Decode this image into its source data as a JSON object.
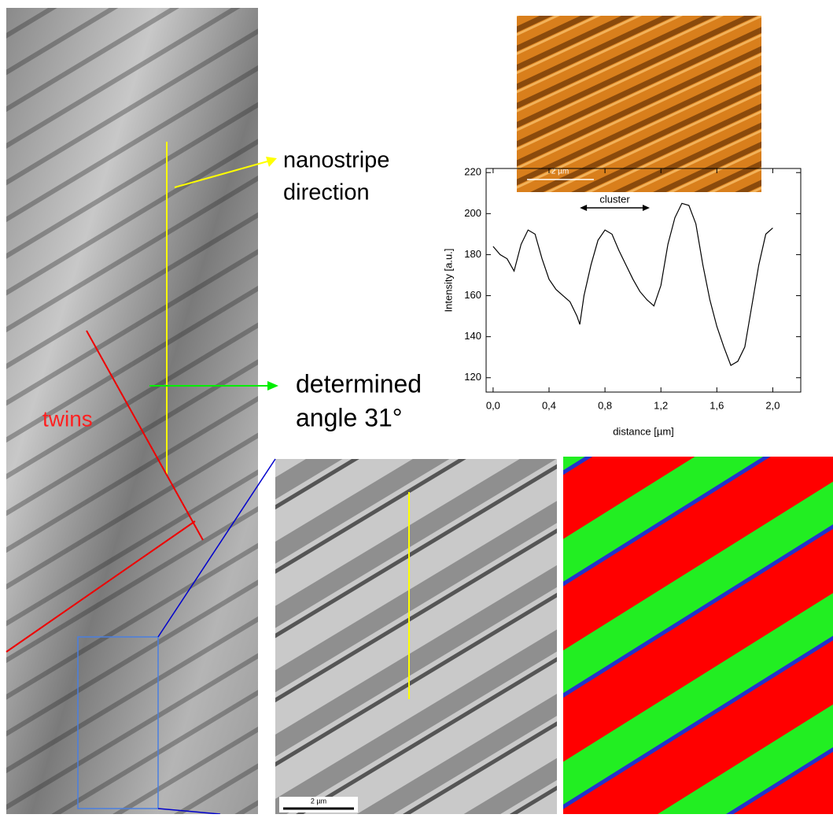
{
  "chart_data": {
    "type": "line",
    "x": [
      0.0,
      0.05,
      0.1,
      0.15,
      0.2,
      0.25,
      0.3,
      0.35,
      0.4,
      0.45,
      0.5,
      0.55,
      0.6,
      0.62,
      0.65,
      0.7,
      0.75,
      0.8,
      0.85,
      0.9,
      0.95,
      1.0,
      1.05,
      1.1,
      1.15,
      1.2,
      1.25,
      1.3,
      1.35,
      1.4,
      1.45,
      1.5,
      1.55,
      1.6,
      1.65,
      1.7,
      1.75,
      1.8,
      1.85,
      1.9,
      1.95,
      2.0
    ],
    "values": [
      184,
      180,
      178,
      172,
      185,
      192,
      190,
      178,
      168,
      163,
      160,
      157,
      150,
      146,
      160,
      175,
      187,
      192,
      190,
      182,
      175,
      168,
      162,
      158,
      155,
      165,
      185,
      198,
      205,
      204,
      195,
      175,
      158,
      145,
      135,
      126,
      128,
      135,
      155,
      175,
      190,
      193
    ],
    "color": "#000000",
    "xlabel": "distance [µm]",
    "ylabel": "Intensity [a.u.]",
    "xlim": [
      -0.05,
      2.2
    ],
    "ylim": [
      113,
      222
    ],
    "xticks": [
      {
        "value": 0,
        "label": "0,0"
      },
      {
        "value": 0.4,
        "label": "0,4"
      },
      {
        "value": 0.8,
        "label": "0,8"
      },
      {
        "value": 1.2,
        "label": "1,2"
      },
      {
        "value": 1.6,
        "label": "1,6"
      },
      {
        "value": 2.0,
        "label": "2,0"
      }
    ],
    "yticks": [
      120,
      140,
      160,
      180,
      200,
      220
    ],
    "annotation": {
      "text": "cluster",
      "x": [
        0.62,
        1.12
      ]
    }
  },
  "figure_labels": {
    "nanostripe": [
      "nanostripe",
      "direction"
    ],
    "angle": [
      "determined",
      "angle 31°"
    ],
    "twins": "twins",
    "scale_bars": [
      "2 µm",
      "2 µm"
    ]
  }
}
